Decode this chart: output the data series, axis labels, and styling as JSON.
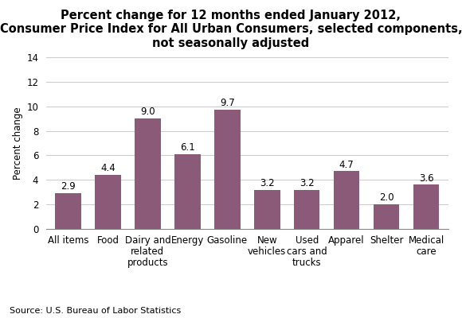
{
  "title": "Percent change for 12 months ended January 2012,\nConsumer Price Index for All Urban Consumers, selected components,\nnot seasonally adjusted",
  "categories": [
    "All items",
    "Food",
    "Dairy and\nrelated\nproducts",
    "Energy",
    "Gasoline",
    "New\nvehicles",
    "Used\ncars and\ntrucks",
    "Apparel",
    "Shelter",
    "Medical\ncare"
  ],
  "values": [
    2.9,
    4.4,
    9.0,
    6.1,
    9.7,
    3.2,
    3.2,
    4.7,
    2.0,
    3.6
  ],
  "bar_color": "#8B5A79",
  "ylabel": "Percent change",
  "ylim": [
    0,
    14
  ],
  "yticks": [
    0,
    2,
    4,
    6,
    8,
    10,
    12,
    14
  ],
  "source": "Source: U.S. Bureau of Labor Statistics",
  "title_fontsize": 10.5,
  "label_fontsize": 8.5,
  "tick_fontsize": 8.5,
  "ylabel_fontsize": 8.5,
  "source_fontsize": 8.0
}
